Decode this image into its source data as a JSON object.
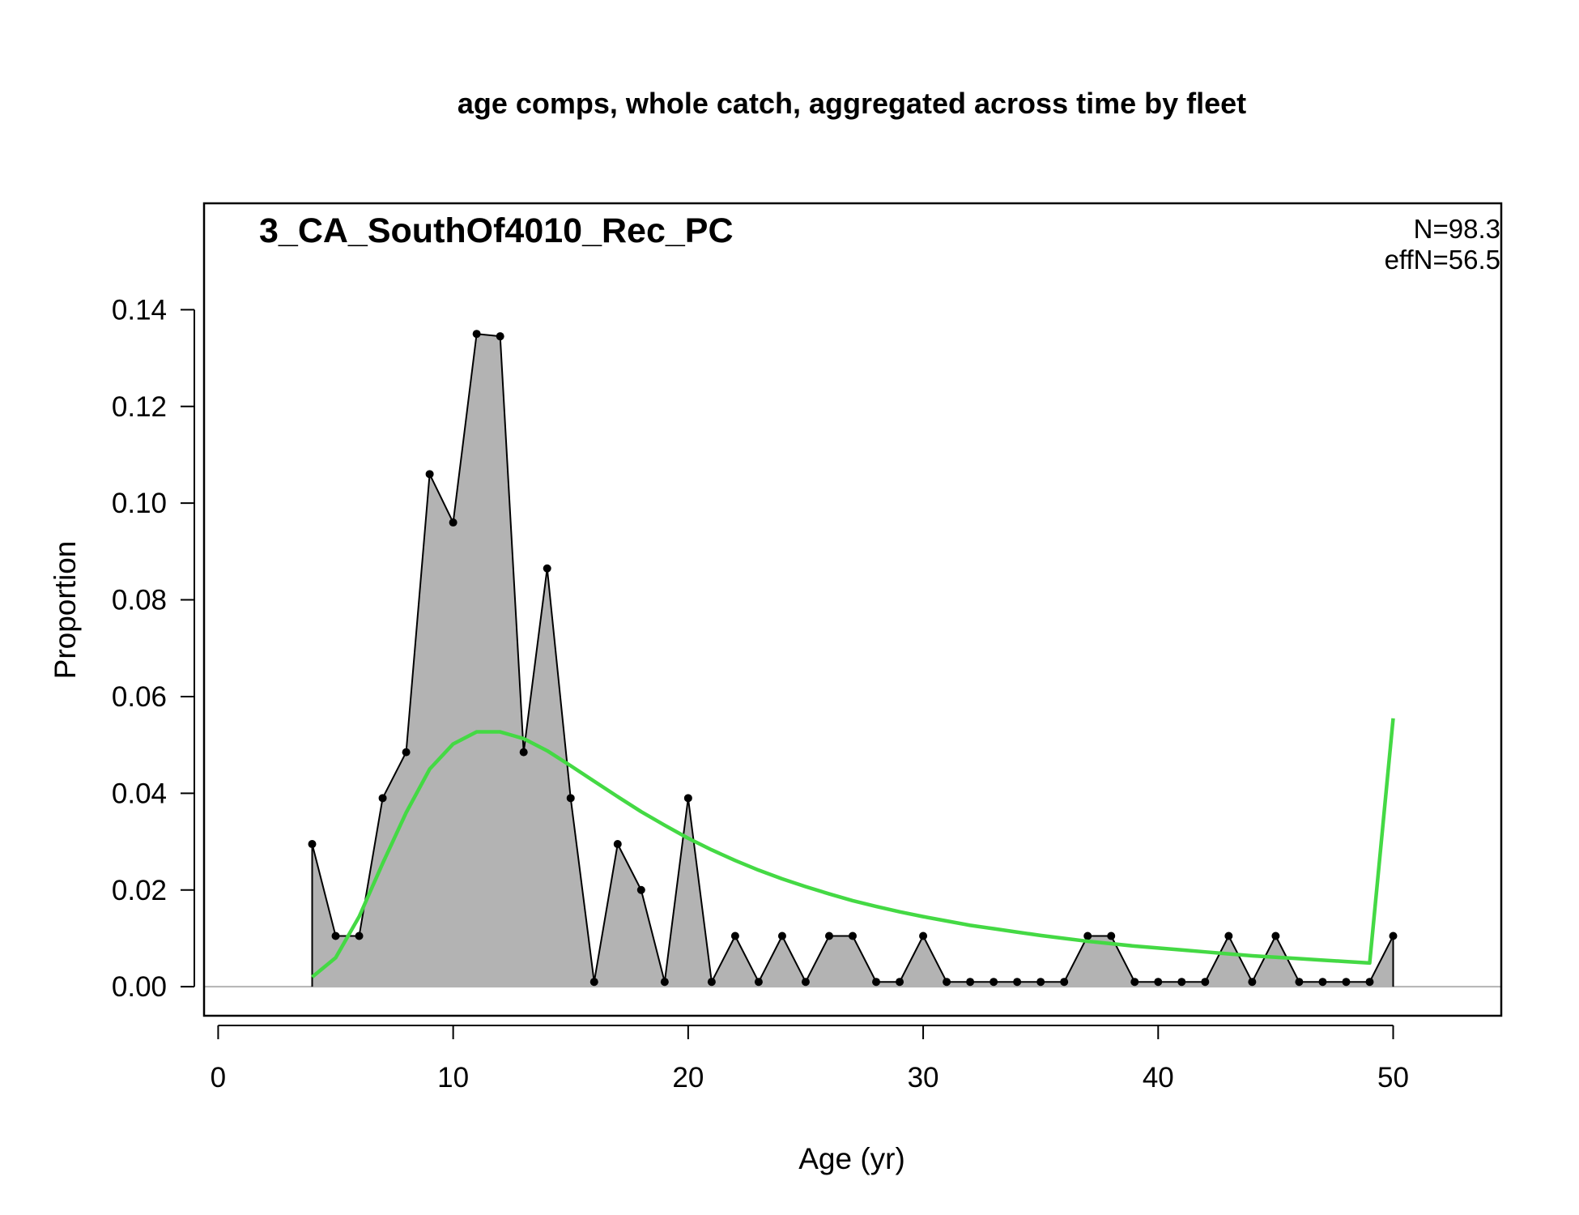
{
  "chart_data": {
    "type": "area",
    "title": "age comps, whole catch, aggregated across time by fleet",
    "panel_label": "3_CA_SouthOf4010_Rec_PC",
    "stats": {
      "n": "N=98.3",
      "effn": "effN=56.5"
    },
    "xlabel": "Age (yr)",
    "ylabel": "Proportion",
    "xlim": [
      -0.6,
      54.6
    ],
    "ylim": [
      -0.006,
      0.162
    ],
    "x_ticks": [
      0,
      10,
      20,
      30,
      40,
      50
    ],
    "x_tick_labels": [
      "0",
      "10",
      "20",
      "30",
      "40",
      "50"
    ],
    "y_ticks": [
      0.0,
      0.02,
      0.04,
      0.06,
      0.08,
      0.1,
      0.12,
      0.14
    ],
    "y_tick_labels": [
      "0.00",
      "0.02",
      "0.04",
      "0.06",
      "0.08",
      "0.10",
      "0.12",
      "0.14"
    ],
    "grid": false,
    "x": [
      4,
      5,
      6,
      7,
      8,
      9,
      10,
      11,
      12,
      13,
      14,
      15,
      16,
      17,
      18,
      19,
      20,
      21,
      22,
      23,
      24,
      25,
      26,
      27,
      28,
      29,
      30,
      31,
      32,
      33,
      34,
      35,
      36,
      37,
      38,
      39,
      40,
      41,
      42,
      43,
      44,
      45,
      46,
      47,
      48,
      49,
      50
    ],
    "series": [
      {
        "name": "observed",
        "style": "filled-area-with-points",
        "fill": "#b3b3b3",
        "line": "#000000",
        "values": [
          0.0295,
          0.0105,
          0.0105,
          0.039,
          0.0485,
          0.106,
          0.096,
          0.135,
          0.1345,
          0.0485,
          0.0865,
          0.039,
          0.001,
          0.0295,
          0.02,
          0.001,
          0.039,
          0.001,
          0.0105,
          0.001,
          0.0105,
          0.001,
          0.0105,
          0.0105,
          0.001,
          0.001,
          0.0105,
          0.001,
          0.001,
          0.001,
          0.001,
          0.001,
          0.001,
          0.0105,
          0.0105,
          0.001,
          0.001,
          0.001,
          0.001,
          0.0105,
          0.001,
          0.0105,
          0.001,
          0.001,
          0.001,
          0.001,
          0.0105
        ]
      },
      {
        "name": "expected",
        "style": "line",
        "color": "#44d944",
        "values": [
          0.002,
          0.006,
          0.0145,
          0.0255,
          0.036,
          0.045,
          0.0502,
          0.0527,
          0.0527,
          0.0513,
          0.0488,
          0.0457,
          0.0425,
          0.0393,
          0.0362,
          0.0334,
          0.0307,
          0.0283,
          0.0261,
          0.0241,
          0.0223,
          0.0207,
          0.0192,
          0.0178,
          0.0166,
          0.0155,
          0.0145,
          0.0136,
          0.0127,
          0.012,
          0.0113,
          0.0106,
          0.01,
          0.0094,
          0.0089,
          0.0084,
          0.008,
          0.0076,
          0.0072,
          0.0068,
          0.0064,
          0.0061,
          0.0058,
          0.0055,
          0.0052,
          0.0049,
          0.0555
        ]
      }
    ],
    "colors": {
      "zero_line": "#b3b3b3",
      "frame": "#000000"
    }
  }
}
